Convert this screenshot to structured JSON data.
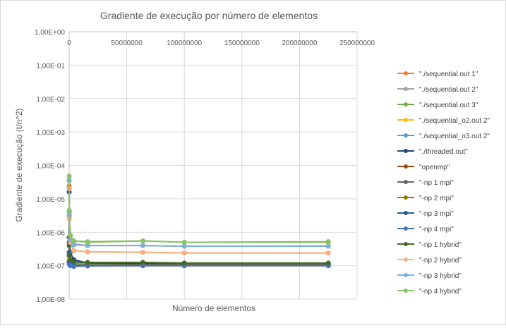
{
  "chart_data": {
    "type": "scatter",
    "title": "Gradiente de execução por número de elementos",
    "xlabel": "Número  de elementos",
    "ylabel": "Gradiente de execução (t/n^2)",
    "xlim": [
      0,
      250000000
    ],
    "ylim": [
      1e-08,
      1
    ],
    "y_scale": "log",
    "grid": true,
    "legend_position": "right",
    "x_tick_labels": [
      "0",
      "50000000",
      "100000000",
      "150000000",
      "200000000",
      "250000000"
    ],
    "x_tick_values": [
      0,
      50000000,
      100000000,
      150000000,
      200000000,
      250000000
    ],
    "y_tick_labels": [
      "1,00E+00",
      "1,00E-01",
      "1,00E-02",
      "1,00E-03",
      "1,00E-04",
      "1,00E-05",
      "1,00E-06",
      "1,00E-07",
      "1,00E-08"
    ],
    "y_tick_values": [
      1,
      0.1,
      0.01,
      0.001,
      0.0001,
      1e-05,
      1e-06,
      1e-07,
      1e-08
    ],
    "x": [
      1000,
      100000,
      1000000,
      4000000,
      16000000,
      64000000,
      100000000,
      225000000
    ],
    "series": [
      {
        "name": "\"./sequential.out 1\"",
        "color": "#ed7d31",
        "values": [
          2.4e-05,
          3.2e-06,
          5.5e-07,
          2.8e-07,
          2.6e-07,
          2.5e-07,
          2.4e-07,
          2.4e-07
        ]
      },
      {
        "name": "\"./sequential.out 2\"",
        "color": "#a5a5a5",
        "values": [
          2e-05,
          3e-06,
          5.2e-07,
          4.5e-07,
          4e-07,
          4e-07,
          3.8e-07,
          3.9e-07
        ]
      },
      {
        "name": "\"./sequential.out 3\"",
        "color": "#70ad47",
        "values": [
          3.5e-05,
          4e-06,
          8e-07,
          5.5e-07,
          5.2e-07,
          5.5e-07,
          5e-07,
          5.2e-07
        ]
      },
      {
        "name": "\"./sequential_o2.out 2\"",
        "color": "#ffc000",
        "values": [
          1.5e-07,
          1.4e-07,
          1.3e-07,
          1.2e-07,
          1.15e-07,
          1.15e-07,
          1.12e-07,
          1.12e-07
        ]
      },
      {
        "name": "\"./sequential_o3.out 2\"",
        "color": "#5b9bd5",
        "values": [
          1.4e-07,
          1.3e-07,
          1.25e-07,
          1.2e-07,
          1.15e-07,
          1.12e-07,
          1.1e-07,
          1.1e-07
        ]
      },
      {
        "name": "\"./threaded.out\"",
        "color": "#264478",
        "values": [
          1.6e-05,
          5e-07,
          2.5e-07,
          1.5e-07,
          1.2e-07,
          1.15e-07,
          1.1e-07,
          1.1e-07
        ]
      },
      {
        "name": "\"openmp\"",
        "color": "#9e480e",
        "values": [
          7e-07,
          2e-07,
          1.2e-07,
          1.05e-07,
          1e-07,
          1e-07,
          1e-07,
          1e-07
        ]
      },
      {
        "name": "\"-np 1 mpi\"",
        "color": "#636363",
        "values": [
          1.2e-07,
          1.1e-07,
          1.05e-07,
          1.05e-07,
          1.05e-07,
          1.05e-07,
          1.05e-07,
          1.05e-07
        ]
      },
      {
        "name": "\"-np 2 mpi\"",
        "color": "#997300",
        "values": [
          1.3e-07,
          1.15e-07,
          1.1e-07,
          1.05e-07,
          1.05e-07,
          1.05e-07,
          1.05e-07,
          1.05e-07
        ]
      },
      {
        "name": "\"-np 3 mpi\"",
        "color": "#255e91",
        "values": [
          2.5e-07,
          1.2e-07,
          1.05e-07,
          1.02e-07,
          1e-07,
          1e-07,
          1e-07,
          1e-07
        ]
      },
      {
        "name": "\"-np 4 mpi\"",
        "color": "#4472c4",
        "values": [
          2.3e-07,
          1.1e-07,
          1e-07,
          9.5e-08,
          9.8e-08,
          1e-07,
          1e-07,
          1e-07
        ]
      },
      {
        "name": "\"-np 1 hybrid\"",
        "color": "#43682b",
        "values": [
          4e-07,
          2e-07,
          1.5e-07,
          1.3e-07,
          1.25e-07,
          1.25e-07,
          1.2e-07,
          1.2e-07
        ]
      },
      {
        "name": "\"-np 2 hybrid\"",
        "color": "#f4b183",
        "values": [
          2e-05,
          2.5e-06,
          5e-07,
          2.8e-07,
          2.6e-07,
          2.5e-07,
          2.4e-07,
          2.4e-07
        ]
      },
      {
        "name": "\"-np 3 hybrid\"",
        "color": "#7cafdd",
        "values": [
          3.6e-05,
          3.5e-06,
          6e-07,
          4.2e-07,
          4e-07,
          4e-07,
          3.8e-07,
          3.8e-07
        ]
      },
      {
        "name": "\"-np 4 hybrid\"",
        "color": "#8cc168",
        "values": [
          4.8e-05,
          4.5e-06,
          8e-07,
          5.5e-07,
          5e-07,
          5.5e-07,
          5e-07,
          5e-07
        ]
      }
    ]
  }
}
